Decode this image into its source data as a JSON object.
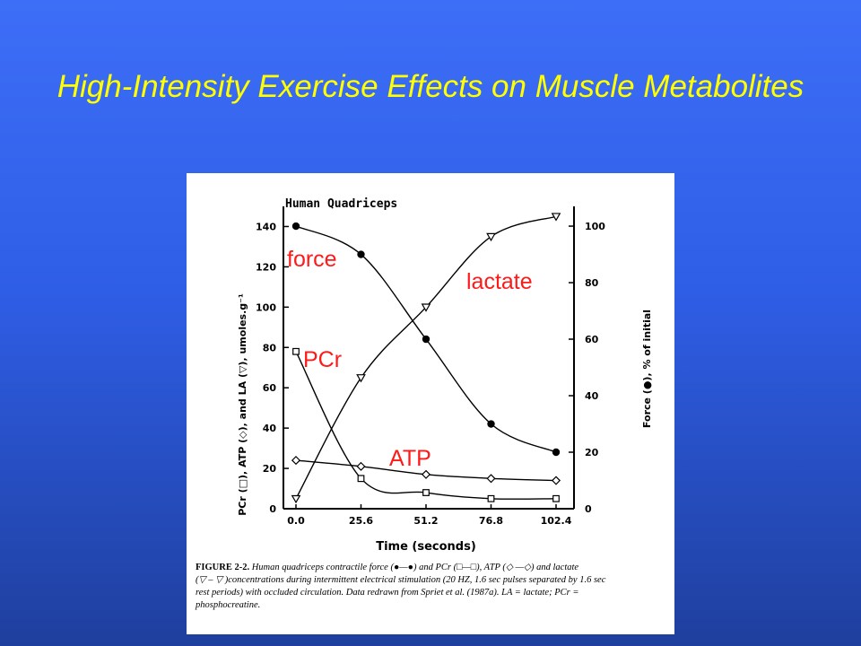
{
  "slide": {
    "title": "High-Intensity Exercise Effects on Muscle Metabolites"
  },
  "chart_data": {
    "type": "line",
    "title": "Human Quadriceps",
    "xlabel": "Time (seconds)",
    "ylabel_left": "PCr (□), ATP (◇), and LA (▽), umoles.g⁻¹",
    "ylabel_right": "Force (●), % of initial",
    "x": [
      0.0,
      25.6,
      51.2,
      76.8,
      102.4
    ],
    "x_ticks": [
      "0.0",
      "25.6",
      "51.2",
      "76.8",
      "102.4"
    ],
    "y_left_ticks": [
      0,
      20,
      40,
      60,
      80,
      100,
      120,
      140
    ],
    "y_right_ticks": [
      0,
      20,
      40,
      60,
      80,
      100
    ],
    "ylim_left": [
      0,
      150
    ],
    "ylim_right": [
      0,
      107
    ],
    "grid": false,
    "series": [
      {
        "name": "force",
        "marker": "filled-circle",
        "axis": "right",
        "values": [
          100,
          90,
          60,
          30,
          20
        ]
      },
      {
        "name": "PCr",
        "marker": "square",
        "axis": "left",
        "values": [
          78,
          15,
          8,
          5,
          5
        ]
      },
      {
        "name": "ATP",
        "marker": "diamond",
        "axis": "left",
        "values": [
          24,
          21,
          17,
          15,
          14
        ]
      },
      {
        "name": "lactate",
        "marker": "triangle-down",
        "axis": "left",
        "values": [
          5,
          65,
          100,
          135,
          145
        ]
      }
    ],
    "annotations": [
      "force",
      "lactate",
      "PCr",
      "ATP"
    ],
    "annotation_color": "#ff1a1a"
  },
  "caption": {
    "figure_label": "FIGURE 2-2.",
    "line1": "Human quadriceps contractile force (●—●) and PCr (□—□), ATP (◇ —◇) and lactate",
    "line2": "(▽ – ▽ )concentrations during intermittent electrical stimulation (20 HZ, 1.6 sec pulses separated by 1.6 sec",
    "line3": "rest periods) with occluded circulation. Data redrawn from Spriet et al. (1987a). LA = lactate; PCr =",
    "line4": "phosphocreatine."
  }
}
